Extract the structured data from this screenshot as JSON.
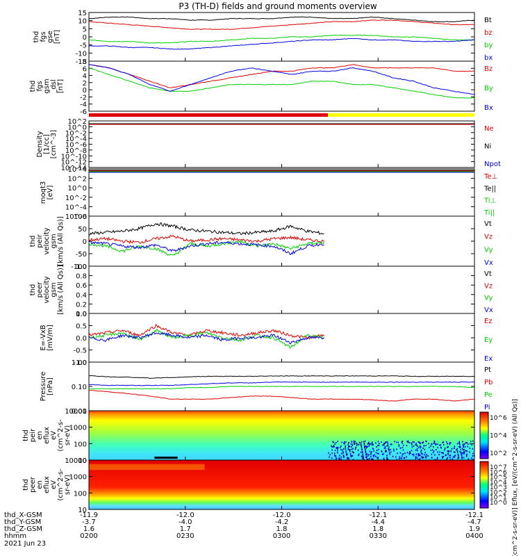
{
  "title": "P3 (TH-D) fields and ground moments overview",
  "colors": {
    "black": "#000000",
    "red": "#e00000",
    "green": "#00d000",
    "blue": "#0000e0",
    "yellow": "#ffff00"
  },
  "chart_data": [
    {
      "type": "line",
      "ylabel": [
        "thd",
        "fgs",
        "gse",
        "[nT]"
      ],
      "yticks": [
        "15",
        "10",
        "5",
        "0",
        "-5",
        "-10",
        "-15"
      ],
      "ylim": [
        -16,
        16
      ],
      "series": [
        {
          "name": "Bt",
          "color": "#000000",
          "values": [
            12,
            13,
            13,
            12,
            12,
            11,
            11,
            12,
            12,
            12,
            13,
            13,
            12,
            12,
            13,
            12,
            11,
            10,
            10,
            11
          ]
        },
        {
          "name": "bz",
          "color": "#e00000",
          "values": [
            10,
            9,
            8,
            7,
            6,
            5,
            5,
            5,
            6,
            7,
            8,
            9,
            10,
            10,
            11,
            11,
            10,
            9,
            8,
            8
          ]
        },
        {
          "name": "by",
          "color": "#00d000",
          "values": [
            -2,
            -3,
            -3,
            -4,
            -4,
            -3,
            -3,
            -2,
            -1,
            -1,
            0,
            0,
            1,
            1,
            1,
            0,
            0,
            -1,
            -2,
            -2
          ]
        },
        {
          "name": "bx",
          "color": "#0000e0",
          "values": [
            -6,
            -6,
            -7,
            -7,
            -8,
            -8,
            -7,
            -6,
            -5,
            -4,
            -3,
            -2,
            -2,
            -1,
            -2,
            -2,
            -3,
            -3,
            -3,
            -2
          ]
        }
      ]
    },
    {
      "type": "line",
      "ylabel": [
        "thd",
        "fgs",
        "gsm",
        "_dsl",
        "[nT]"
      ],
      "yticks": [
        "8",
        "6",
        "4",
        "2",
        "0",
        "-2",
        "-4",
        "-6"
      ],
      "ylim": [
        -7,
        8
      ],
      "series": [
        {
          "name": "Bz",
          "color": "#e00000",
          "values": [
            7,
            6,
            4,
            2,
            0,
            1,
            2,
            3,
            4,
            5,
            5,
            6,
            6,
            7,
            6,
            6,
            6,
            6,
            5,
            5
          ]
        },
        {
          "name": "By",
          "color": "#00d000",
          "values": [
            6,
            4,
            2,
            0,
            -1,
            -1,
            0,
            1,
            1,
            1,
            1,
            2,
            2,
            1,
            1,
            0,
            -1,
            -2,
            -3,
            -3
          ]
        },
        {
          "name": "Bx",
          "color": "#0000e0",
          "values": [
            7,
            6,
            4,
            1,
            -1,
            1,
            3,
            5,
            6,
            5,
            4,
            5,
            5,
            6,
            5,
            3,
            2,
            0,
            -1,
            -2
          ]
        }
      ]
    },
    {
      "type": "bar",
      "ylabel": [
        "Density",
        "[1/cc]",
        "[cm^-3]"
      ],
      "yticks": [
        "10^2",
        "10^0",
        "10^-2",
        "10^-4",
        "10^-6",
        "10^-8",
        "10^-10",
        "10^-12",
        "10^-14"
      ],
      "series": [
        {
          "name": "Ne",
          "color": "#e00000"
        },
        {
          "name": "Ni",
          "color": "#000000"
        },
        {
          "name": "Npot",
          "color": "#0000e0"
        }
      ]
    },
    {
      "type": "line",
      "ylabel": [
        "moqt3",
        "[eV]"
      ],
      "yticks": [
        "10^4",
        "10^2",
        "10^0",
        "10^-2",
        "10^-4",
        "10^-6"
      ],
      "series": [
        {
          "name": "Te⊥",
          "color": "#e00000"
        },
        {
          "name": "Te||",
          "color": "#000000"
        },
        {
          "name": "Ti⊥",
          "color": "#00d000"
        },
        {
          "name": "Ti||",
          "color": "#00d000"
        }
      ]
    },
    {
      "type": "line",
      "ylabel": [
        "thd",
        "peir",
        "velocity",
        "gsm",
        "[km/s (All Qs)]"
      ],
      "yticks": [
        "100",
        "50",
        "0",
        "-50",
        "-100"
      ],
      "ylim": [
        -100,
        100
      ],
      "series": [
        {
          "name": "Vt",
          "color": "#000000",
          "values": [
            30,
            35,
            40,
            50,
            70,
            60,
            45,
            40,
            35,
            30,
            35,
            40,
            60,
            40,
            30
          ]
        },
        {
          "name": "Vz",
          "color": "#e00000",
          "values": [
            5,
            10,
            0,
            -5,
            10,
            20,
            0,
            5,
            10,
            5,
            0,
            10,
            15,
            5,
            0
          ]
        },
        {
          "name": "Vy",
          "color": "#00d000",
          "values": [
            -10,
            -20,
            -40,
            -20,
            -30,
            -60,
            -10,
            -20,
            -10,
            0,
            -20,
            -10,
            -30,
            -10,
            -5
          ]
        },
        {
          "name": "Vx",
          "color": "#0000e0",
          "values": [
            -5,
            -10,
            -20,
            -25,
            -15,
            -40,
            -20,
            -10,
            -5,
            -10,
            -15,
            -20,
            -50,
            -20,
            -10
          ]
        }
      ]
    },
    {
      "type": "line",
      "ylabel": [
        "thd",
        "peer",
        "velocity",
        "gsm",
        "[km/s (All Qs)]"
      ],
      "yticks": [
        "1.0",
        "0.8",
        "0.6",
        "0.4",
        "0.2",
        "0.0"
      ],
      "series": [
        {
          "name": "Vt",
          "color": "#000000"
        },
        {
          "name": "Vz",
          "color": "#e00000"
        },
        {
          "name": "Vy",
          "color": "#00d000"
        },
        {
          "name": "Vx",
          "color": "#0000e0"
        }
      ]
    },
    {
      "type": "line",
      "ylabel": [
        "E=-VxB",
        "[mV/m]"
      ],
      "yticks": [
        "1.0",
        "0.5",
        "0.0",
        "-0.5",
        "-1.0"
      ],
      "ylim": [
        -1,
        1
      ],
      "series": [
        {
          "name": "Ez",
          "color": "#e00000",
          "values": [
            0.1,
            0.2,
            0.3,
            0.1,
            0.5,
            0.2,
            0.1,
            0.3,
            0.2,
            0.1,
            0.2,
            0.3,
            0.1,
            0.0,
            0.1
          ]
        },
        {
          "name": "Ey",
          "color": "#00d000",
          "values": [
            0.0,
            0.1,
            0.2,
            -0.1,
            0.3,
            0.0,
            0.1,
            0.2,
            0.0,
            -0.1,
            0.1,
            0.0,
            -0.4,
            0.1,
            0.0
          ]
        },
        {
          "name": "Ex",
          "color": "#0000e0",
          "values": [
            0.0,
            -0.1,
            0.1,
            0.0,
            0.2,
            0.1,
            0.0,
            0.1,
            -0.1,
            0.0,
            0.0,
            0.1,
            -0.2,
            0.0,
            0.0
          ]
        }
      ]
    },
    {
      "type": "line",
      "ylabel": [
        "Pressure",
        "[nPa]"
      ],
      "yticks": [
        "1.00",
        "0.10",
        "0.01"
      ],
      "ylim": [
        0.01,
        1.0
      ],
      "series": [
        {
          "name": "Pt",
          "color": "#000000",
          "values": [
            0.28,
            0.25,
            0.24,
            0.22,
            0.23,
            0.25,
            0.26,
            0.26,
            0.26,
            0.27,
            0.27,
            0.27,
            0.27,
            0.27,
            0.27,
            0.27,
            0.26,
            0.26,
            0.26,
            0.26
          ]
        },
        {
          "name": "Pb",
          "color": "#e00000",
          "values": [
            0.07,
            0.06,
            0.05,
            0.04,
            0.03,
            0.03,
            0.03,
            0.035,
            0.04,
            0.04,
            0.035,
            0.03,
            0.03,
            0.03,
            0.028,
            0.025,
            0.03,
            0.03,
            0.025,
            0.03
          ]
        },
        {
          "name": "Pe",
          "color": "#00d000",
          "values": [
            0.08,
            0.08,
            0.08,
            0.08,
            0.08,
            0.09,
            0.09,
            0.1,
            0.1,
            0.1,
            0.1,
            0.1,
            0.1,
            0.1,
            0.1,
            0.1,
            0.1,
            0.1,
            0.1,
            0.09
          ]
        },
        {
          "name": "Pi",
          "color": "#0000e0",
          "values": [
            0.12,
            0.11,
            0.11,
            0.11,
            0.11,
            0.12,
            0.13,
            0.14,
            0.14,
            0.15,
            0.15,
            0.15,
            0.15,
            0.15,
            0.15,
            0.15,
            0.15,
            0.15,
            0.15,
            0.15
          ]
        }
      ]
    },
    {
      "type": "heatmap",
      "ylabel": [
        "thd",
        "peir",
        "en",
        "eflux",
        "eV",
        "(cm^2-s-",
        "sr-eV)"
      ],
      "yticks": [
        "10000",
        "1000",
        "100",
        "10"
      ],
      "colorbar_ticks": [
        "10^6",
        "10^4",
        "10^2"
      ]
    },
    {
      "type": "heatmap",
      "ylabel": [
        "thd",
        "peer",
        "en",
        "eflux",
        "eV",
        "(cm^2-s-",
        "sr-eV)"
      ],
      "yticks": [
        "10000",
        "1000",
        "100",
        "10"
      ],
      "colorbar_ticks": [
        "10^7",
        "10^6",
        "10^5",
        "10^4",
        "10^3",
        "10^2",
        "10^1",
        "10^0"
      ]
    }
  ],
  "colorbar_label": "[eV/(cm^2-s-sr-eV)] Eflux, [eV/(cm^2-s-sr-eV) (All Qs)]",
  "bottom": {
    "rows": [
      {
        "label": "thd_X-GSM",
        "values": [
          "-11.9",
          "-12.0",
          "-12.0",
          "-12.1",
          "-12.1"
        ]
      },
      {
        "label": "thd_Y-GSM",
        "values": [
          "-3.7",
          "-4.0",
          "-4.2",
          "-4.4",
          "-4.7"
        ]
      },
      {
        "label": "thd_Z-GSM",
        "values": [
          "1.6",
          "1.7",
          "1.8",
          "1.8",
          "1.9"
        ]
      },
      {
        "label": "hhmm",
        "values": [
          "0200",
          "0230",
          "0300",
          "0330",
          "0400"
        ]
      }
    ],
    "date": "2021 Jun 23"
  }
}
